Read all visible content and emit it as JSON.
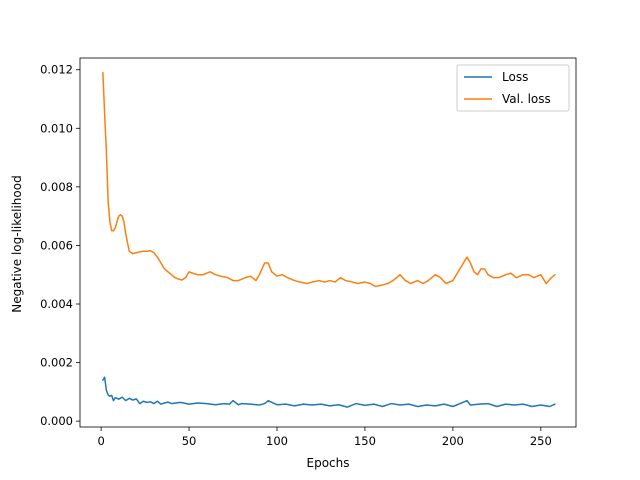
{
  "chart_data": {
    "type": "line",
    "title": "",
    "xlabel": "Epochs",
    "ylabel": "Negative log-likelihood",
    "xlim": [
      -12,
      270
    ],
    "ylim": [
      -0.0002,
      0.0124
    ],
    "xticks": [
      0,
      50,
      100,
      150,
      200,
      250
    ],
    "xtick_labels": [
      "0",
      "50",
      "100",
      "150",
      "200",
      "250"
    ],
    "yticks": [
      0.0,
      0.002,
      0.004,
      0.006,
      0.008,
      0.01,
      0.012
    ],
    "ytick_labels": [
      "0.000",
      "0.002",
      "0.004",
      "0.006",
      "0.008",
      "0.010",
      "0.012"
    ],
    "grid": false,
    "legend_position": "top-right",
    "series": [
      {
        "name": "Loss",
        "color": "#1f77b4",
        "x": [
          1,
          2,
          3,
          4,
          5,
          6,
          7,
          8,
          9,
          10,
          12,
          14,
          16,
          18,
          20,
          22,
          24,
          26,
          28,
          30,
          32,
          34,
          36,
          38,
          40,
          45,
          50,
          55,
          60,
          65,
          70,
          73,
          75,
          78,
          80,
          85,
          90,
          93,
          95,
          100,
          105,
          110,
          115,
          120,
          125,
          130,
          135,
          140,
          145,
          150,
          155,
          160,
          165,
          170,
          175,
          180,
          185,
          190,
          195,
          200,
          205,
          208,
          210,
          215,
          220,
          225,
          230,
          235,
          240,
          245,
          250,
          255,
          258
        ],
        "y": [
          0.0014,
          0.0015,
          0.00105,
          0.0009,
          0.00085,
          0.00088,
          0.0007,
          0.0008,
          0.00078,
          0.00075,
          0.00082,
          0.0007,
          0.00078,
          0.00072,
          0.00076,
          0.0006,
          0.00068,
          0.00064,
          0.00066,
          0.0006,
          0.00068,
          0.00058,
          0.00062,
          0.00065,
          0.0006,
          0.00064,
          0.00058,
          0.00062,
          0.0006,
          0.00056,
          0.0006,
          0.00058,
          0.0007,
          0.00056,
          0.0006,
          0.00058,
          0.00055,
          0.0006,
          0.0007,
          0.00056,
          0.00058,
          0.00052,
          0.00058,
          0.00055,
          0.00058,
          0.00052,
          0.00056,
          0.00048,
          0.0006,
          0.00054,
          0.00058,
          0.0005,
          0.0006,
          0.00055,
          0.00058,
          0.0005,
          0.00055,
          0.00052,
          0.00058,
          0.0005,
          0.00062,
          0.0007,
          0.00055,
          0.00058,
          0.0006,
          0.0005,
          0.00058,
          0.00055,
          0.00058,
          0.0005,
          0.00055,
          0.0005,
          0.00058
        ]
      },
      {
        "name": "Val. loss",
        "color": "#ff7f0e",
        "x": [
          1,
          2,
          3,
          4,
          5,
          6,
          7,
          8,
          9,
          10,
          11,
          12,
          13,
          14,
          16,
          18,
          20,
          22,
          24,
          26,
          28,
          30,
          32,
          34,
          36,
          38,
          40,
          42,
          44,
          46,
          48,
          50,
          52,
          55,
          58,
          62,
          65,
          68,
          72,
          75,
          78,
          82,
          85,
          88,
          90,
          93,
          95,
          97,
          100,
          103,
          106,
          110,
          113,
          117,
          120,
          124,
          127,
          130,
          133,
          136,
          139,
          143,
          146,
          150,
          153,
          156,
          160,
          163,
          166,
          170,
          173,
          176,
          180,
          183,
          186,
          190,
          193,
          196,
          200,
          203,
          206,
          208,
          210,
          212,
          214,
          216,
          218,
          220,
          223,
          226,
          230,
          233,
          236,
          240,
          243,
          246,
          250,
          253,
          256,
          258
        ],
        "y": [
          0.0119,
          0.0105,
          0.0092,
          0.0075,
          0.0068,
          0.0065,
          0.0065,
          0.0066,
          0.0068,
          0.007,
          0.00705,
          0.007,
          0.0068,
          0.0064,
          0.0058,
          0.00572,
          0.00575,
          0.00578,
          0.0058,
          0.0058,
          0.00582,
          0.00575,
          0.0056,
          0.0054,
          0.0052,
          0.0051,
          0.005,
          0.0049,
          0.00485,
          0.00482,
          0.0049,
          0.0051,
          0.00505,
          0.005,
          0.005,
          0.0051,
          0.005,
          0.00495,
          0.0049,
          0.0048,
          0.0048,
          0.0049,
          0.00495,
          0.0048,
          0.005,
          0.0054,
          0.0054,
          0.0051,
          0.00495,
          0.005,
          0.0049,
          0.0048,
          0.00475,
          0.0047,
          0.00475,
          0.0048,
          0.00475,
          0.0048,
          0.00475,
          0.0049,
          0.0048,
          0.00475,
          0.0047,
          0.00475,
          0.0047,
          0.0046,
          0.00465,
          0.0047,
          0.0048,
          0.005,
          0.0048,
          0.0047,
          0.0048,
          0.0047,
          0.0048,
          0.005,
          0.0049,
          0.0047,
          0.0048,
          0.0051,
          0.0054,
          0.0056,
          0.0054,
          0.0051,
          0.005,
          0.0052,
          0.0052,
          0.005,
          0.0049,
          0.0049,
          0.005,
          0.00505,
          0.0049,
          0.005,
          0.005,
          0.0049,
          0.005,
          0.0047,
          0.0049,
          0.005
        ]
      }
    ]
  }
}
